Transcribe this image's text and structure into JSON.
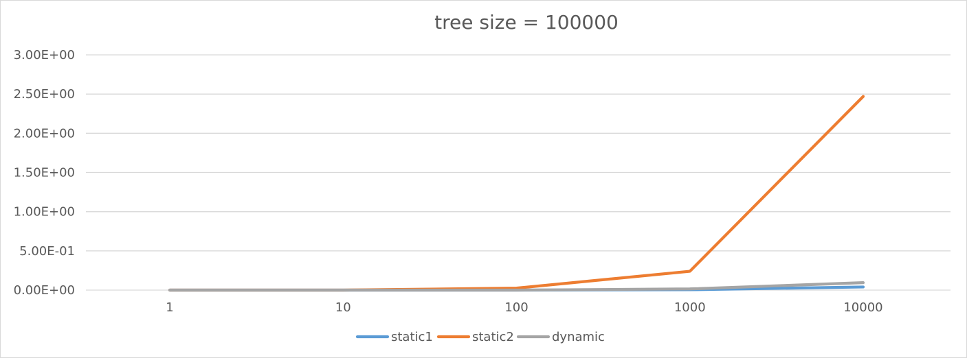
{
  "chart_data": {
    "type": "line",
    "title": "tree size = 100000",
    "categories": [
      "1",
      "10",
      "100",
      "1000",
      "10000"
    ],
    "y_tick_labels": [
      "0.00E+00",
      "5.00E-01",
      "1.00E+00",
      "1.50E+00",
      "2.00E+00",
      "2.50E+00",
      "3.00E+00"
    ],
    "ylim": [
      0,
      3.0
    ],
    "grid": true,
    "legend_position": "bottom",
    "series": [
      {
        "name": "static1",
        "color": "#5b9bd5",
        "values": [
          0.0,
          0.0,
          0.0,
          0.005,
          0.04
        ]
      },
      {
        "name": "static2",
        "color": "#ed7d31",
        "values": [
          0.0,
          0.0,
          0.025,
          0.24,
          2.47
        ]
      },
      {
        "name": "dynamic",
        "color": "#a5a5a5",
        "values": [
          0.0,
          0.0,
          0.0,
          0.015,
          0.095
        ]
      }
    ]
  }
}
